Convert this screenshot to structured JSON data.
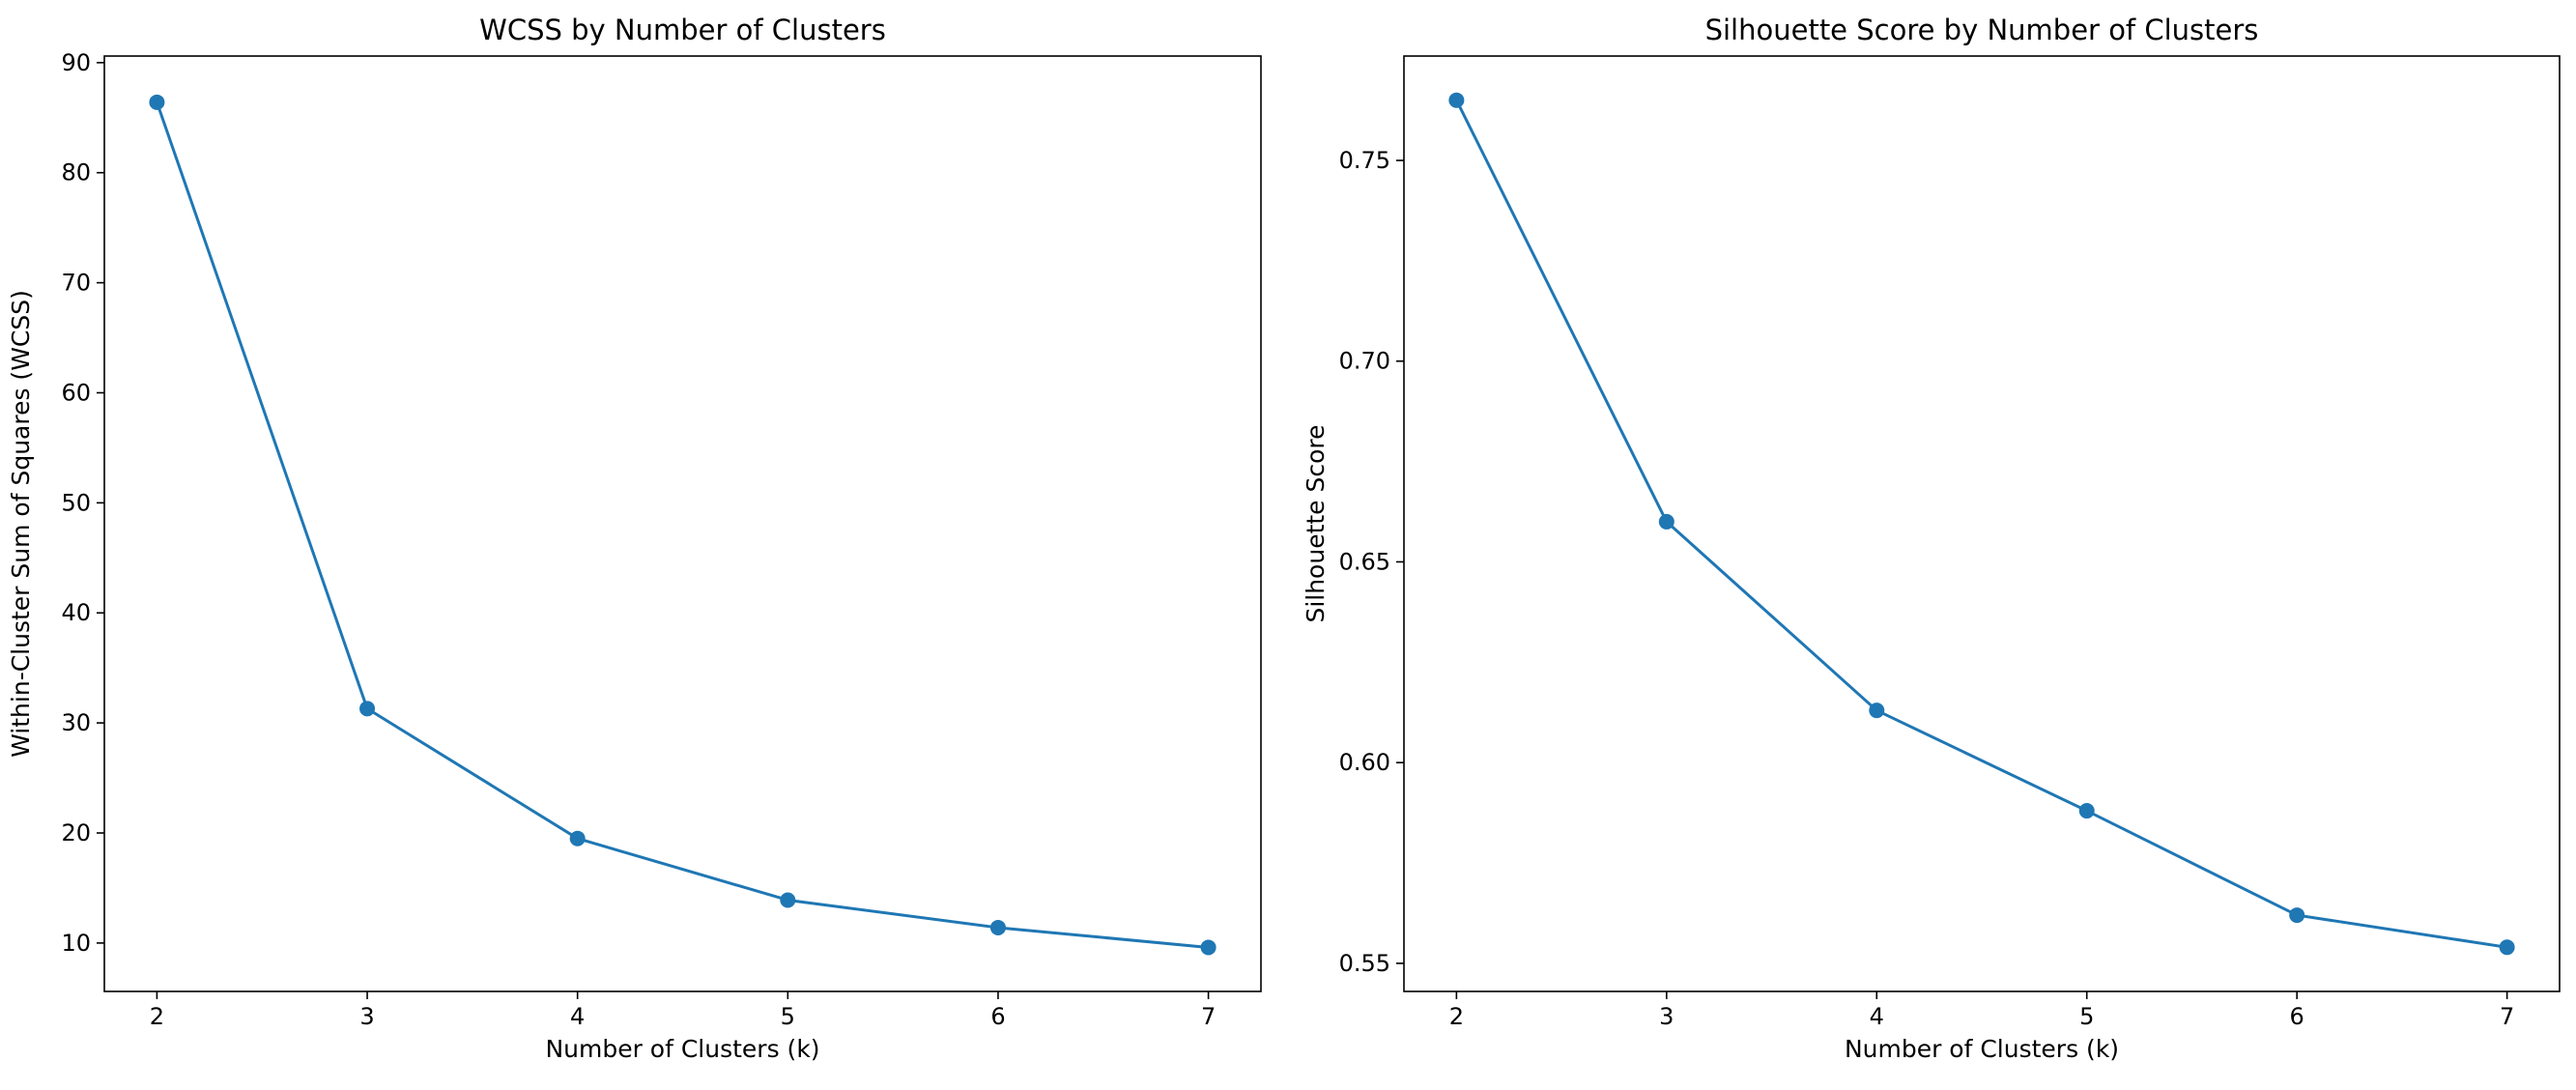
{
  "chart_data": [
    {
      "type": "line",
      "title": "WCSS by Number of Clusters",
      "xlabel": "Number of Clusters (k)",
      "ylabel": "Within-Cluster Sum of Squares (WCSS)",
      "x": [
        2,
        3,
        4,
        5,
        6,
        7
      ],
      "xticks": [
        2,
        3,
        4,
        5,
        6,
        7
      ],
      "yticks": [
        10,
        20,
        30,
        40,
        50,
        60,
        70,
        80,
        90
      ],
      "xlim": [
        1.75,
        7.25
      ],
      "ylim": [
        5.6,
        90.6
      ],
      "series": [
        {
          "values": [
            86.4,
            31.3,
            19.5,
            13.9,
            11.4,
            9.6
          ],
          "color": "#1f77b4",
          "marker": "circle"
        }
      ],
      "grid": false
    },
    {
      "type": "line",
      "title": "Silhouette Score by Number of Clusters",
      "xlabel": "Number of Clusters (k)",
      "ylabel": "Silhouette Score",
      "x": [
        2,
        3,
        4,
        5,
        6,
        7
      ],
      "xticks": [
        2,
        3,
        4,
        5,
        6,
        7
      ],
      "yticks": [
        "0.55",
        "0.60",
        "0.65",
        "0.70",
        "0.75"
      ],
      "xlim": [
        1.75,
        7.25
      ],
      "ylim": [
        0.543,
        0.776
      ],
      "series": [
        {
          "values": [
            0.765,
            0.66,
            0.613,
            0.588,
            0.562,
            0.554
          ],
          "color": "#1f77b4",
          "marker": "circle"
        }
      ],
      "grid": false
    }
  ]
}
